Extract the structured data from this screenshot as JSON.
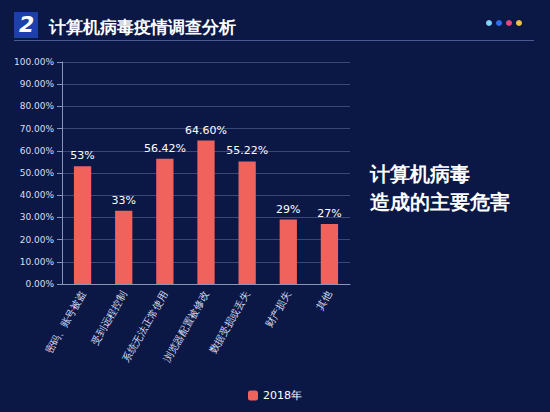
{
  "chart_data": {
    "type": "bar",
    "section": "2",
    "title": "计算机病毒疫情调查分析",
    "annotation": [
      "计算机病毒",
      "造成的主要危害"
    ],
    "categories": [
      "密码、账号被盗",
      "受到远程控制",
      "系统无法正常使用",
      "浏览器配置被修改",
      "数据受损或丢失",
      "财产损失",
      "其他"
    ],
    "series": [
      {
        "name": "2018年",
        "color": "#f0625c",
        "values": [
          53,
          33,
          56.42,
          64.6,
          55.22,
          29,
          27
        ],
        "value_labels": [
          "53%",
          "33%",
          "56.42%",
          "64.60%",
          "55.22%",
          "29%",
          "27%"
        ]
      }
    ],
    "ylim": [
      0,
      100
    ],
    "yticks": [
      {
        "value": 0,
        "label": "0.00%"
      },
      {
        "value": 10,
        "label": "10.00%"
      },
      {
        "value": 20,
        "label": "20.00%"
      },
      {
        "value": 30,
        "label": "30.00%"
      },
      {
        "value": 40,
        "label": "40.00%"
      },
      {
        "value": 50,
        "label": "50.00%"
      },
      {
        "value": 60,
        "label": "60.00%"
      },
      {
        "value": 70,
        "label": "70.00%"
      },
      {
        "value": 80,
        "label": "80.00%"
      },
      {
        "value": 90,
        "label": "90.00%"
      },
      {
        "value": 100,
        "label": "100.00%"
      }
    ],
    "grid": true,
    "legend": "bottom",
    "data_labels": true
  }
}
